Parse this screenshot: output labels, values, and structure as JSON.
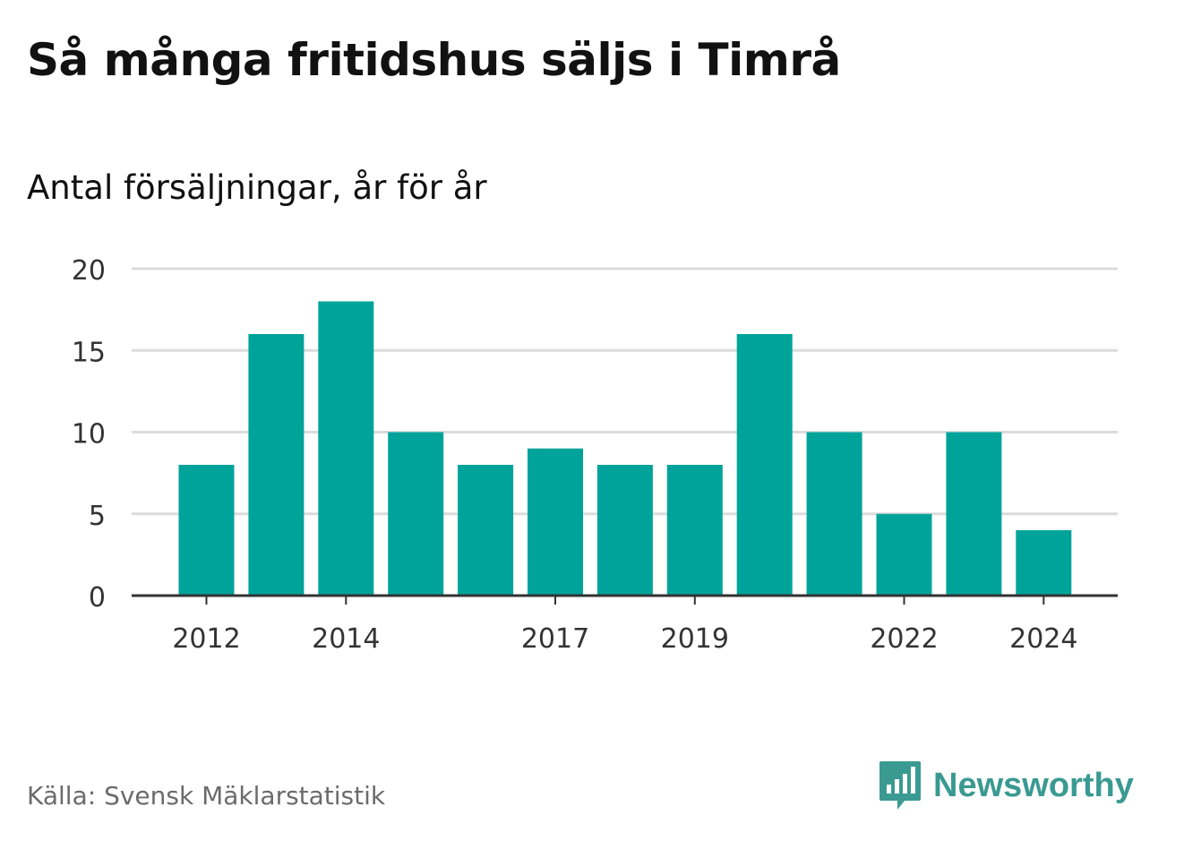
{
  "title": "Så många fritidshus säljs i Timrå",
  "subtitle": "Antal försäljningar, år för år",
  "source": "Källa: Svensk Mäklarstatistik",
  "brand": "Newsworthy",
  "colors": {
    "bar": "#00a39a",
    "grid": "#dcdcdc",
    "axis": "#333333",
    "brand": "#3a9a92"
  },
  "chart_data": {
    "type": "bar",
    "categories": [
      "2012",
      "2013",
      "2014",
      "2015",
      "2016",
      "2017",
      "2018",
      "2019",
      "2020",
      "2021",
      "2022",
      "2023",
      "2024"
    ],
    "values": [
      8,
      16,
      18,
      10,
      8,
      9,
      8,
      8,
      16,
      10,
      5,
      10,
      4
    ],
    "x_tick_labels": [
      "2012",
      "2014",
      "2017",
      "2019",
      "2022",
      "2024"
    ],
    "y_ticks": [
      0,
      5,
      10,
      15,
      20
    ],
    "ylim": [
      0,
      20
    ],
    "grid": true,
    "xlabel": "",
    "ylabel": ""
  }
}
